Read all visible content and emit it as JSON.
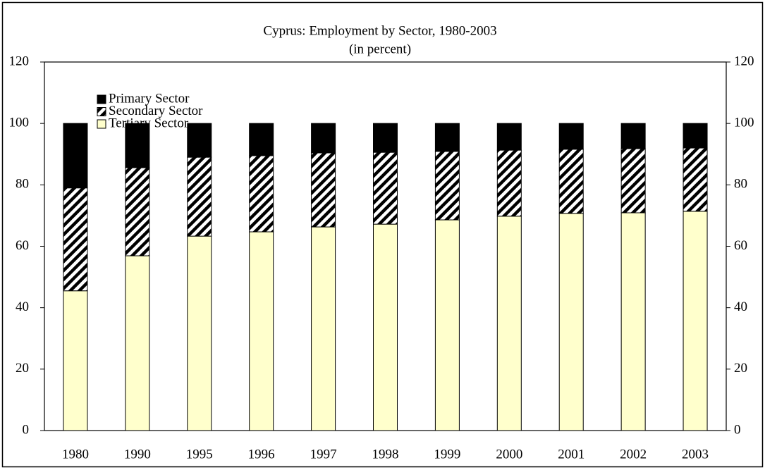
{
  "chart_data": {
    "type": "stacked-bar",
    "title": "Cyprus:  Employment by Sector, 1980-2003",
    "subtitle": "(in percent)",
    "categories": [
      "1980",
      "1990",
      "1995",
      "1996",
      "1997",
      "1998",
      "1999",
      "2000",
      "2001",
      "2002",
      "2003"
    ],
    "series": [
      {
        "name": "Primary Sector",
        "color": "#000000",
        "values": [
          21.0,
          14.4,
          11.0,
          10.5,
          9.6,
          9.4,
          9.1,
          8.7,
          8.4,
          8.2,
          8.0
        ]
      },
      {
        "name": "Secondary Sector",
        "color": "#000000",
        "pattern": "hatch",
        "values": [
          33.5,
          28.7,
          25.7,
          24.8,
          24.1,
          23.4,
          22.3,
          21.5,
          20.9,
          20.9,
          20.6
        ]
      },
      {
        "name": "Tertiary Sector",
        "color": "#ffffcc",
        "values": [
          45.5,
          56.9,
          63.3,
          64.7,
          66.3,
          67.2,
          68.6,
          69.8,
          70.7,
          70.9,
          71.4
        ]
      }
    ],
    "ylim": [
      0,
      120
    ],
    "yticks": [
      0,
      20,
      40,
      60,
      80,
      100,
      120
    ],
    "y2lim": [
      0,
      120
    ],
    "y2ticks": [
      0,
      20,
      40,
      60,
      80,
      100,
      120
    ],
    "legend": "upper-left"
  }
}
